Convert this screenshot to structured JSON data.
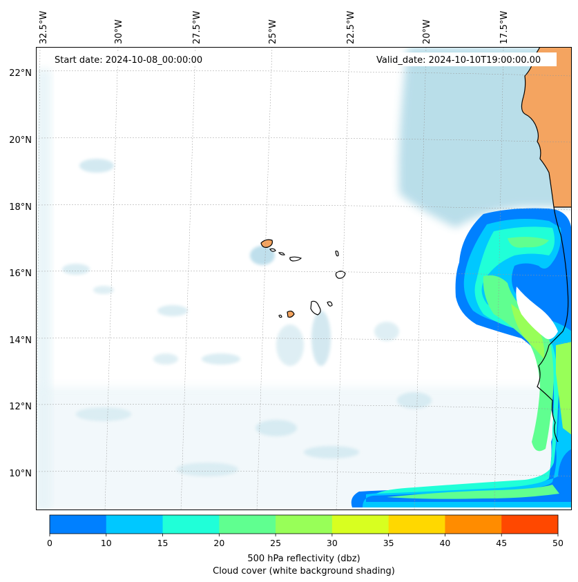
{
  "map": {
    "start_date_text": "Start date: 2024-10-08_00:00:00",
    "valid_date_text": "Valid_date: 2024-10-10T19:00:00.00",
    "lon_labels": [
      "32.5°W",
      "30°W",
      "27.5°W",
      "25°W",
      "22.5°W",
      "20°W",
      "17.5°W"
    ],
    "lat_labels": [
      "22°N",
      "20°N",
      "18°N",
      "16°N",
      "14°N",
      "12°N",
      "10°N"
    ],
    "land_color": "#f4a460",
    "cloud_color": "#add8e6"
  },
  "colorbar": {
    "ticks": [
      "0",
      "10",
      "15",
      "20",
      "25",
      "30",
      "35",
      "40",
      "45",
      "50"
    ],
    "colors": [
      "#0080ff",
      "#00c8ff",
      "#20ffd8",
      "#60ff90",
      "#98ff58",
      "#d8ff20",
      "#ffd800",
      "#ff8c00",
      "#ff4800"
    ],
    "label_line1": "500 hPa reflectivity (dbz)",
    "label_line2": "Cloud cover (white background shading)"
  }
}
